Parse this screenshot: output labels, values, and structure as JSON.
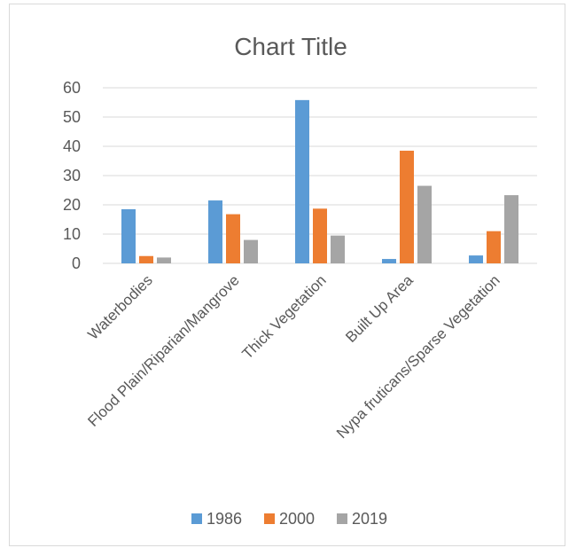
{
  "chart_data": {
    "type": "bar",
    "title": "Chart Title",
    "categories": [
      "Waterbodies",
      "Flood Plain/Riparian/Mangrove",
      "Thick Vegetation",
      "Built Up Area",
      "Nypa fruticans/Sparse Vegetation"
    ],
    "series": [
      {
        "name": "1986",
        "color": "#5b9bd5",
        "values": [
          18.5,
          21.5,
          55.8,
          1.5,
          2.7
        ]
      },
      {
        "name": "2000",
        "color": "#ed7d31",
        "values": [
          2.5,
          16.8,
          18.7,
          38.5,
          11.0
        ]
      },
      {
        "name": "2019",
        "color": "#a5a5a5",
        "values": [
          2.0,
          8.0,
          9.5,
          26.5,
          23.3
        ]
      }
    ],
    "yticks": [
      0,
      10,
      20,
      30,
      40,
      50,
      60
    ],
    "ylim": [
      0,
      60
    ],
    "grid": true,
    "legend_position": "bottom"
  }
}
